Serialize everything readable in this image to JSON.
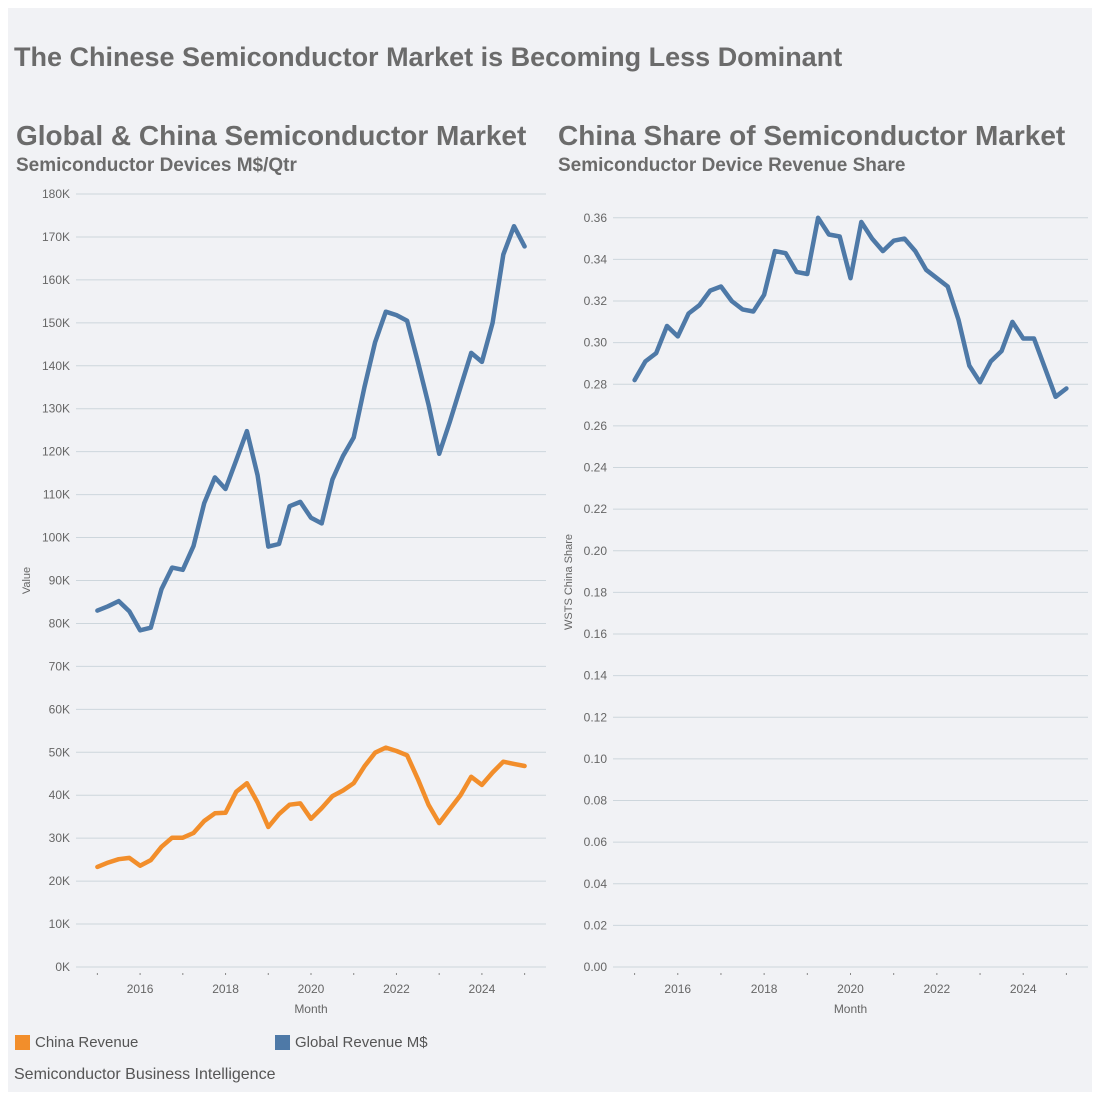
{
  "main_title": "The Chinese Semiconductor Market is Becoming Less Dominant",
  "footer": "Semiconductor Business Intelligence",
  "colors": {
    "china": "#f28e2b",
    "global": "#4e79a7",
    "grid": "#cdd6dc",
    "background": "#f1f2f5"
  },
  "chart_data": [
    {
      "type": "line",
      "title": "Global & China Semiconductor Market",
      "subtitle": "Semiconductor Devices M$/Qtr",
      "xlabel": "Month",
      "ylabel": "Value",
      "ylim": [
        0,
        180000
      ],
      "xlim": [
        2014.5,
        2025.5
      ],
      "grid": true,
      "y_ticks": [
        {
          "value": 0,
          "label": "0K"
        },
        {
          "value": 10000,
          "label": "10K"
        },
        {
          "value": 20000,
          "label": "20K"
        },
        {
          "value": 30000,
          "label": "30K"
        },
        {
          "value": 40000,
          "label": "40K"
        },
        {
          "value": 50000,
          "label": "50K"
        },
        {
          "value": 60000,
          "label": "60K"
        },
        {
          "value": 70000,
          "label": "70K"
        },
        {
          "value": 80000,
          "label": "80K"
        },
        {
          "value": 90000,
          "label": "90K"
        },
        {
          "value": 100000,
          "label": "100K"
        },
        {
          "value": 110000,
          "label": "110K"
        },
        {
          "value": 120000,
          "label": "120K"
        },
        {
          "value": 130000,
          "label": "130K"
        },
        {
          "value": 140000,
          "label": "140K"
        },
        {
          "value": 150000,
          "label": "150K"
        },
        {
          "value": 160000,
          "label": "160K"
        },
        {
          "value": 170000,
          "label": "170K"
        },
        {
          "value": 180000,
          "label": "180K"
        }
      ],
      "x_ticks": [
        {
          "value": 2016,
          "label": "2016"
        },
        {
          "value": 2018,
          "label": "2018"
        },
        {
          "value": 2020,
          "label": "2020"
        },
        {
          "value": 2022,
          "label": "2022"
        },
        {
          "value": 2024,
          "label": "2024"
        }
      ],
      "legend": [
        {
          "label": "China Revenue",
          "series": "China Revenue"
        },
        {
          "label": "Global Revenue M$",
          "series": "Global Revenue M$"
        }
      ],
      "x": [
        2015.0,
        2015.25,
        2015.5,
        2015.75,
        2016.0,
        2016.25,
        2016.5,
        2016.75,
        2017.0,
        2017.25,
        2017.5,
        2017.75,
        2018.0,
        2018.25,
        2018.5,
        2018.75,
        2019.0,
        2019.25,
        2019.5,
        2019.75,
        2020.0,
        2020.25,
        2020.5,
        2020.75,
        2021.0,
        2021.25,
        2021.5,
        2021.75,
        2022.0,
        2022.25,
        2022.5,
        2022.75,
        2023.0,
        2023.25,
        2023.5,
        2023.75,
        2024.0,
        2024.25,
        2024.5,
        2024.75,
        2025.0
      ],
      "series": [
        {
          "name": "Global Revenue M$",
          "color": "#4e79a7",
          "values": [
            83000,
            84000,
            85200,
            82800,
            78400,
            79000,
            88000,
            93000,
            92500,
            98000,
            108000,
            114000,
            111300,
            118000,
            124800,
            114500,
            97900,
            98500,
            107300,
            108300,
            104600,
            103300,
            113500,
            119000,
            123300,
            135000,
            145500,
            152600,
            151800,
            150500,
            141000,
            131000,
            119500,
            127000,
            135000,
            143000,
            140900,
            150000,
            165900,
            172500,
            167800
          ]
        },
        {
          "name": "China Revenue",
          "color": "#f28e2b",
          "values": [
            23300,
            24300,
            25100,
            25400,
            23600,
            24900,
            28000,
            30100,
            30100,
            31200,
            34000,
            35800,
            35900,
            40800,
            42800,
            38300,
            32600,
            35600,
            37800,
            38100,
            34500,
            37000,
            39800,
            41100,
            42800,
            46700,
            49900,
            51100,
            50300,
            49300,
            43800,
            37800,
            33500,
            36800,
            40000,
            44300,
            42400,
            45300,
            47800,
            47300,
            46800
          ]
        }
      ]
    },
    {
      "type": "line",
      "title": "China Share of Semiconductor Market",
      "subtitle": "Semiconductor Device Revenue Share",
      "xlabel": "Month",
      "ylabel": "WSTS China Share",
      "ylim": [
        0,
        0.37
      ],
      "xlim": [
        2014.5,
        2025.5
      ],
      "grid": true,
      "y_ticks": [
        {
          "value": 0,
          "label": "0.00"
        },
        {
          "value": 0.02,
          "label": "0.02"
        },
        {
          "value": 0.04,
          "label": "0.04"
        },
        {
          "value": 0.06,
          "label": "0.06"
        },
        {
          "value": 0.08,
          "label": "0.08"
        },
        {
          "value": 0.1,
          "label": "0.10"
        },
        {
          "value": 0.12,
          "label": "0.12"
        },
        {
          "value": 0.14,
          "label": "0.14"
        },
        {
          "value": 0.16,
          "label": "0.16"
        },
        {
          "value": 0.18,
          "label": "0.18"
        },
        {
          "value": 0.2,
          "label": "0.20"
        },
        {
          "value": 0.22,
          "label": "0.22"
        },
        {
          "value": 0.24,
          "label": "0.24"
        },
        {
          "value": 0.26,
          "label": "0.26"
        },
        {
          "value": 0.28,
          "label": "0.28"
        },
        {
          "value": 0.3,
          "label": "0.30"
        },
        {
          "value": 0.32,
          "label": "0.32"
        },
        {
          "value": 0.34,
          "label": "0.34"
        },
        {
          "value": 0.36,
          "label": "0.36"
        }
      ],
      "x_ticks": [
        {
          "value": 2016,
          "label": "2016"
        },
        {
          "value": 2018,
          "label": "2018"
        },
        {
          "value": 2020,
          "label": "2020"
        },
        {
          "value": 2022,
          "label": "2022"
        },
        {
          "value": 2024,
          "label": "2024"
        }
      ],
      "x": [
        2015.0,
        2015.25,
        2015.5,
        2015.75,
        2016.0,
        2016.25,
        2016.5,
        2016.75,
        2017.0,
        2017.25,
        2017.5,
        2017.75,
        2018.0,
        2018.25,
        2018.5,
        2018.75,
        2019.0,
        2019.25,
        2019.5,
        2019.75,
        2020.0,
        2020.25,
        2020.5,
        2020.75,
        2021.0,
        2021.25,
        2021.5,
        2021.75,
        2022.0,
        2022.25,
        2022.5,
        2022.75,
        2023.0,
        2023.25,
        2023.5,
        2023.75,
        2024.0,
        2024.25,
        2024.5,
        2024.75,
        2025.0
      ],
      "series": [
        {
          "name": "China Share",
          "color": "#4e79a7",
          "values": [
            0.282,
            0.291,
            0.295,
            0.308,
            0.303,
            0.314,
            0.318,
            0.325,
            0.327,
            0.32,
            0.316,
            0.315,
            0.323,
            0.344,
            0.343,
            0.334,
            0.333,
            0.36,
            0.352,
            0.351,
            0.331,
            0.358,
            0.35,
            0.344,
            0.349,
            0.35,
            0.344,
            0.335,
            0.331,
            0.327,
            0.311,
            0.289,
            0.281,
            0.291,
            0.296,
            0.31,
            0.302,
            0.302,
            0.288,
            0.274,
            0.278
          ]
        }
      ]
    }
  ]
}
